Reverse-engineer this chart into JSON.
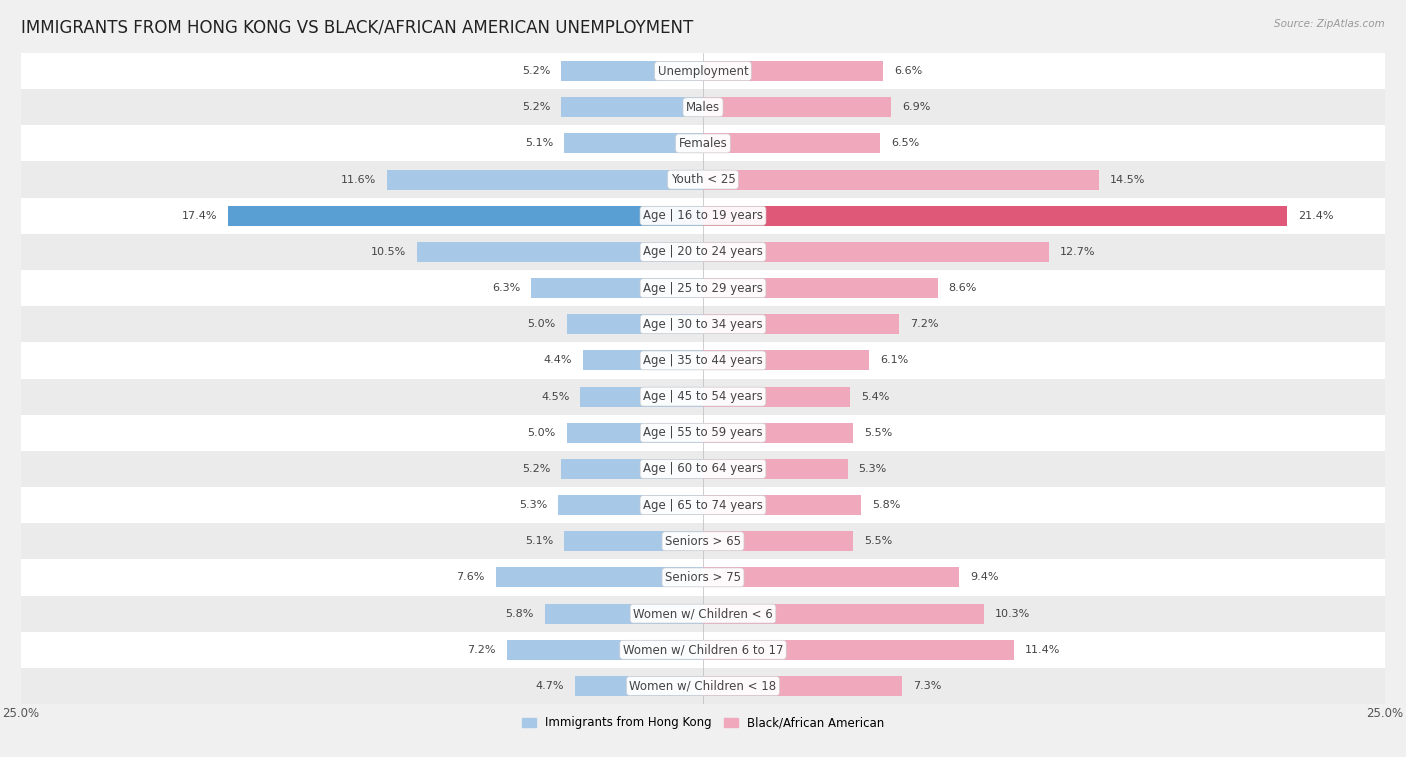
{
  "title": "IMMIGRANTS FROM HONG KONG VS BLACK/AFRICAN AMERICAN UNEMPLOYMENT",
  "source": "Source: ZipAtlas.com",
  "categories": [
    "Unemployment",
    "Males",
    "Females",
    "Youth < 25",
    "Age | 16 to 19 years",
    "Age | 20 to 24 years",
    "Age | 25 to 29 years",
    "Age | 30 to 34 years",
    "Age | 35 to 44 years",
    "Age | 45 to 54 years",
    "Age | 55 to 59 years",
    "Age | 60 to 64 years",
    "Age | 65 to 74 years",
    "Seniors > 65",
    "Seniors > 75",
    "Women w/ Children < 6",
    "Women w/ Children 6 to 17",
    "Women w/ Children < 18"
  ],
  "left_values": [
    5.2,
    5.2,
    5.1,
    11.6,
    17.4,
    10.5,
    6.3,
    5.0,
    4.4,
    4.5,
    5.0,
    5.2,
    5.3,
    5.1,
    7.6,
    5.8,
    7.2,
    4.7
  ],
  "right_values": [
    6.6,
    6.9,
    6.5,
    14.5,
    21.4,
    12.7,
    8.6,
    7.2,
    6.1,
    5.4,
    5.5,
    5.3,
    5.8,
    5.5,
    9.4,
    10.3,
    11.4,
    7.3
  ],
  "left_color": "#a8c8e8",
  "right_color": "#f0a8bc",
  "left_highlight_color": "#5a9fd4",
  "right_highlight_color": "#e05878",
  "highlight_index": 4,
  "left_label": "Immigrants from Hong Kong",
  "right_label": "Black/African American",
  "xlim": 25.0,
  "row_colors": [
    "#ffffff",
    "#ebebeb"
  ],
  "title_fontsize": 12,
  "label_fontsize": 8.5,
  "value_fontsize": 8,
  "cat_fontsize": 8.5,
  "axis_tick_fontsize": 8.5
}
